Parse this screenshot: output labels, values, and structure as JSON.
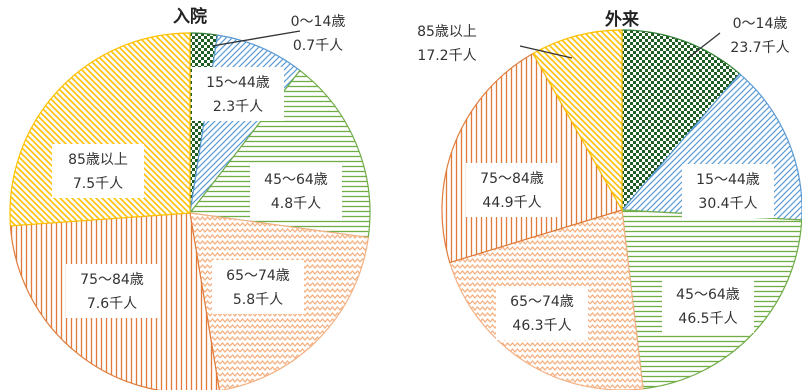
{
  "chart_data": [
    {
      "type": "pie",
      "title": "入院",
      "categories": [
        "0～14歳",
        "15～44歳",
        "45～64歳",
        "65～74歳",
        "75～84歳",
        "85歳以上"
      ],
      "values": [
        0.7,
        2.3,
        4.8,
        5.8,
        7.6,
        7.5
      ],
      "value_labels": [
        "0.7千人",
        "2.3千人",
        "4.8千人",
        "5.8千人",
        "7.6千人",
        "7.5千人"
      ],
      "unit": "千人",
      "colors": [
        "#2e7d32",
        "#5b9bd5",
        "#70ad47",
        "#f4b183",
        "#e07b39",
        "#ffc000"
      ],
      "patterns": [
        "checker",
        "diagonal",
        "horizontal",
        "zigzag",
        "vertical",
        "diagonal-rev"
      ]
    },
    {
      "type": "pie",
      "title": "外来",
      "categories": [
        "0～14歳",
        "15～44歳",
        "45～64歳",
        "65～74歳",
        "75～84歳",
        "85歳以上"
      ],
      "values": [
        23.7,
        30.4,
        46.5,
        46.3,
        44.9,
        17.2
      ],
      "value_labels": [
        "23.7千人",
        "30.4千人",
        "46.5千人",
        "46.3千人",
        "44.9千人",
        "17.2千人"
      ],
      "unit": "千人",
      "colors": [
        "#2e7d32",
        "#5b9bd5",
        "#70ad47",
        "#f4b183",
        "#e07b39",
        "#ffc000"
      ],
      "patterns": [
        "checker",
        "diagonal",
        "horizontal",
        "zigzag",
        "vertical",
        "diagonal-rev"
      ]
    }
  ]
}
